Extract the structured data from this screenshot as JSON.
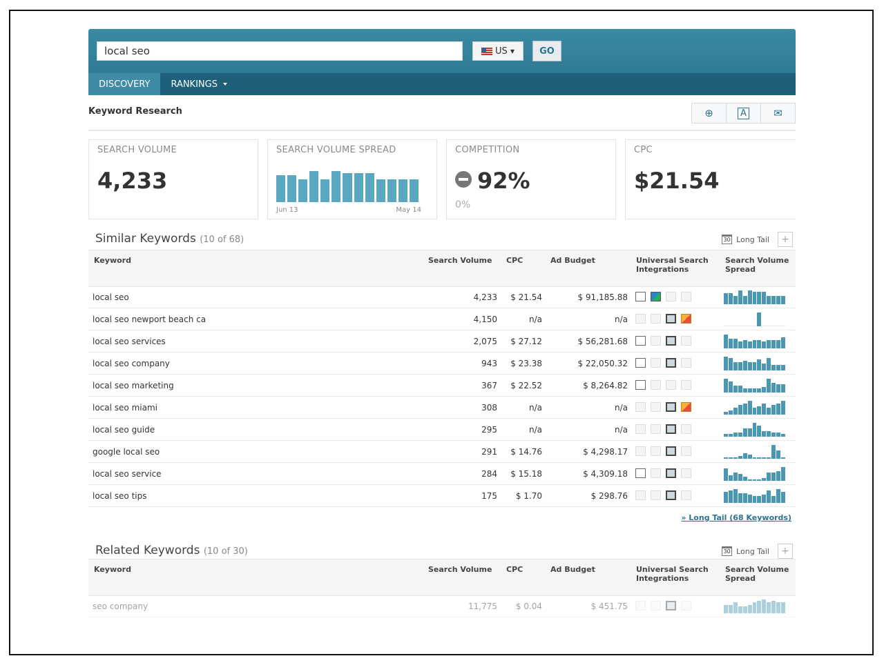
{
  "search": {
    "value": "local seo",
    "country_label": "US",
    "go_label": "GO"
  },
  "nav": {
    "tabs": [
      {
        "label": "DISCOVERY"
      },
      {
        "label": "RANKINGS"
      }
    ]
  },
  "page": {
    "title": "Keyword Research",
    "tools": [
      "add-icon",
      "pdf-icon",
      "email-icon"
    ]
  },
  "metrics": {
    "search_volume": {
      "label": "SEARCH VOLUME",
      "value": "4,233"
    },
    "spread": {
      "label": "SEARCH VOLUME SPREAD",
      "start": "Jun 13",
      "end": "May 14",
      "bars": [
        0.85,
        0.85,
        0.72,
        0.98,
        0.72,
        0.98,
        0.92,
        0.92,
        0.92,
        0.72,
        0.72,
        0.72,
        0.72
      ]
    },
    "competition": {
      "label": "COMPETITION",
      "value": "92%",
      "sub": "0%"
    },
    "cpc": {
      "label": "CPC",
      "value": "$21.54"
    }
  },
  "similar": {
    "title": "Similar Keywords",
    "count": "(10 of 68)",
    "long_tail_label": "Long Tail",
    "more_link": "» Long Tail (68 Keywords)",
    "rows": [
      {
        "keyword": "local seo",
        "volume": "4,233",
        "cpc": "$ 21.54",
        "budget": "$ 91,185.88",
        "usi": [
          "on",
          "img",
          "off",
          "off"
        ],
        "spread": [
          0.8,
          0.8,
          0.6,
          1,
          0.6,
          1,
          0.9,
          0.9,
          0.9,
          0.6,
          0.6,
          0.6,
          0.6
        ]
      },
      {
        "keyword": "local seo newport beach ca",
        "volume": "4,150",
        "cpc": "n/a",
        "budget": "n/a",
        "usi": [
          "off",
          "off",
          "vid",
          "news"
        ],
        "spread": [
          0,
          0,
          0,
          0,
          0,
          0,
          0,
          1,
          0,
          0,
          0,
          0,
          0
        ]
      },
      {
        "keyword": "local seo services",
        "volume": "2,075",
        "cpc": "$ 27.12",
        "budget": "$ 56,281.68",
        "usi": [
          "on",
          "off",
          "vid",
          "off"
        ],
        "spread": [
          1,
          0.7,
          0.7,
          0.5,
          0.6,
          0.5,
          0.6,
          0.6,
          0.5,
          0.6,
          0.6,
          0.6,
          0.8
        ]
      },
      {
        "keyword": "local seo company",
        "volume": "943",
        "cpc": "$ 23.38",
        "budget": "$ 22,050.32",
        "usi": [
          "on",
          "off",
          "vid",
          "off"
        ],
        "spread": [
          1,
          0.9,
          0.6,
          0.6,
          0.7,
          0.6,
          0.6,
          0.8,
          0.5,
          0.9,
          0.4,
          0.4,
          0.4
        ]
      },
      {
        "keyword": "local seo marketing",
        "volume": "367",
        "cpc": "$ 22.52",
        "budget": "$ 8,264.82",
        "usi": [
          "on",
          "off",
          "off",
          "off"
        ],
        "spread": [
          1,
          0.8,
          0.5,
          0.5,
          0.3,
          0.3,
          0.3,
          0.3,
          0.4,
          1,
          0.7,
          0.6,
          0.6
        ]
      },
      {
        "keyword": "local seo miami",
        "volume": "308",
        "cpc": "n/a",
        "budget": "n/a",
        "usi": [
          "off",
          "off",
          "vid",
          "news"
        ],
        "spread": [
          0.2,
          0.3,
          0.5,
          0.7,
          0.8,
          1,
          0.5,
          0.6,
          0.8,
          0.5,
          0.7,
          0.8,
          1
        ]
      },
      {
        "keyword": "local seo guide",
        "volume": "295",
        "cpc": "n/a",
        "budget": "n/a",
        "usi": [
          "off",
          "off",
          "vid",
          "off"
        ],
        "spread": [
          0.2,
          0.2,
          0.3,
          0.3,
          0.6,
          0.6,
          1,
          0.8,
          0.4,
          0.4,
          0.3,
          0.3,
          0.2
        ]
      },
      {
        "keyword": "google local seo",
        "volume": "291",
        "cpc": "$ 14.76",
        "budget": "$ 4,298.17",
        "usi": [
          "off",
          "off",
          "vid",
          "off"
        ],
        "spread": [
          0.1,
          0.1,
          0.1,
          0.2,
          0.4,
          0.3,
          0.1,
          0.1,
          0.1,
          0.1,
          1,
          0.6,
          0.1
        ]
      },
      {
        "keyword": "local seo service",
        "volume": "284",
        "cpc": "$ 15.18",
        "budget": "$ 4,309.18",
        "usi": [
          "on",
          "off",
          "vid",
          "off"
        ],
        "spread": [
          0.9,
          0.4,
          0.6,
          0.5,
          0.3,
          0.1,
          0.1,
          0.1,
          0.2,
          0.6,
          0.6,
          0.7,
          1
        ]
      },
      {
        "keyword": "local seo tips",
        "volume": "175",
        "cpc": "$ 1.70",
        "budget": "$ 298.76",
        "usi": [
          "off",
          "off",
          "vid",
          "off"
        ],
        "spread": [
          0.8,
          0.9,
          1,
          0.7,
          0.7,
          0.6,
          0.5,
          0.5,
          0.6,
          0.9,
          0.5,
          1,
          0.8
        ]
      }
    ]
  },
  "related": {
    "title": "Related Keywords",
    "count": "(10 of 30)",
    "long_tail_label": "Long Tail",
    "rows": [
      {
        "keyword": "seo company",
        "volume": "11,775",
        "cpc": "$ 0.04",
        "budget": "$ 451.75",
        "usi": [
          "off",
          "off",
          "vid",
          "off"
        ],
        "spread": [
          0.6,
          0.6,
          0.8,
          0.5,
          0.5,
          0.6,
          0.8,
          0.9,
          1,
          0.8,
          0.9,
          0.8,
          0.8
        ]
      }
    ]
  },
  "table_headers": {
    "keyword": "Keyword",
    "volume": "Search Volume",
    "cpc": "CPC",
    "budget": "Ad Budget",
    "usi_line1": "Universal Search",
    "usi_line2": "Integrations",
    "spread_line1": "Search Volume",
    "spread_line2": "Spread"
  }
}
